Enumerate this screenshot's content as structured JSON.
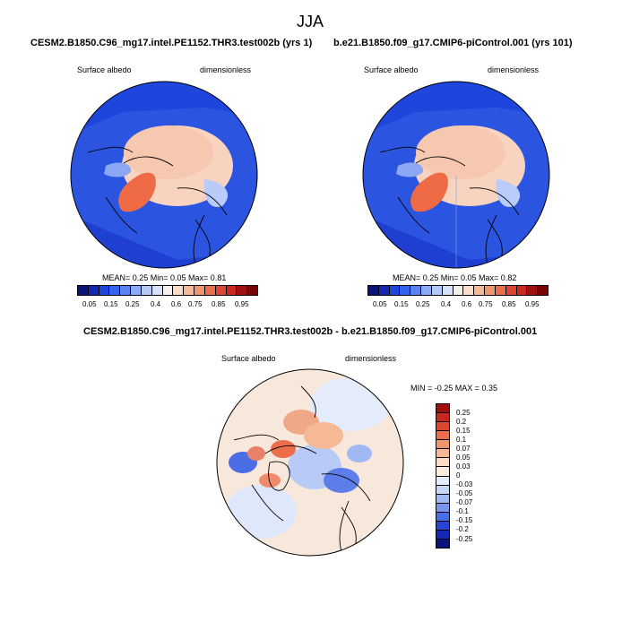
{
  "figure": {
    "season": "JJA",
    "panel_left": {
      "title": "CESM2.B1850.C96_mg17.intel.PE1152.THR3.test002b (yrs 1)",
      "variable": "Surface albedo",
      "units": "dimensionless",
      "stats": "MEAN=  0.25  Min=  0.05  Max=  0.81"
    },
    "panel_right": {
      "title": "b.e21.B1850.f09_g17.CMIP6-piControl.001 (yrs 101)",
      "variable": "Surface albedo",
      "units": "dimensionless",
      "stats": "MEAN=  0.25  Min=  0.05  Max=  0.82"
    },
    "panel_diff": {
      "title": "CESM2.B1850.C96_mg17.intel.PE1152.THR3.test002b - b.e21.B1850.f09_g17.CMIP6-piControl.001",
      "variable": "Surface albedo",
      "units": "dimensionless",
      "stats": "MIN =  -0.25 MAX =   0.35"
    },
    "colorbar_main": {
      "labels": [
        "0.05",
        "0.15",
        "0.25",
        "0.4",
        "0.6",
        "0.75",
        "0.85",
        "0.95"
      ],
      "colors": [
        "#0a1478",
        "#1428b4",
        "#1e46dc",
        "#3264f0",
        "#5a82f0",
        "#8caaf5",
        "#b4c8f8",
        "#d7e1fa",
        "#f5f0eb",
        "#fadcc8",
        "#f5b996",
        "#f0966e",
        "#eb6e4b",
        "#dc4632",
        "#c8281e",
        "#a00f0f",
        "#780505"
      ]
    },
    "colorbar_diff": {
      "labels": [
        "0.25",
        "0.2",
        "0.15",
        "0.1",
        "0.07",
        "0.05",
        "0.03",
        "0",
        "-0.03",
        "-0.05",
        "-0.07",
        "-0.1",
        "-0.15",
        "-0.2",
        "-0.25"
      ],
      "colors": [
        "#a00f0f",
        "#c8281e",
        "#dc4632",
        "#eb6e4b",
        "#f0966e",
        "#f5b996",
        "#fadcc8",
        "#fcebdf",
        "#e4ebfa",
        "#c8d7f8",
        "#a0b9f5",
        "#7896f0",
        "#4b6ee6",
        "#2846d2",
        "#1428b4",
        "#0a1478"
      ]
    }
  }
}
